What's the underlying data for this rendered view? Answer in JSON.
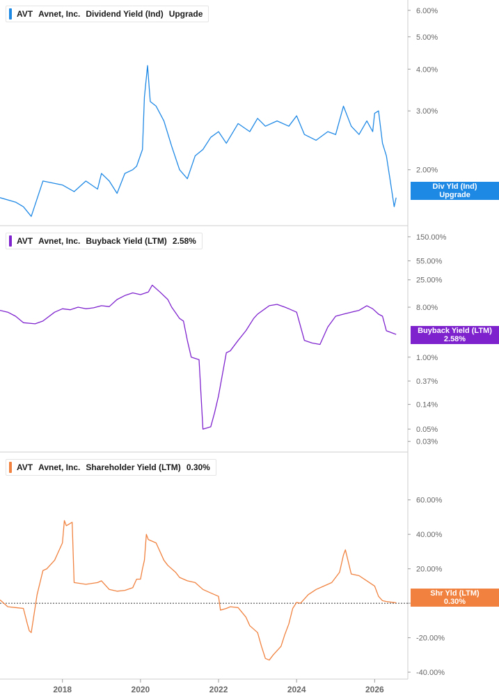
{
  "colors": {
    "dividend": "#1e88e5",
    "buyback": "#7e22ce",
    "shareholder": "#f0813e",
    "axis_text": "#666666",
    "divider": "#cccccc"
  },
  "panels": [
    {
      "id": "dividend",
      "legend": {
        "ticker": "AVT",
        "company": "Avnet, Inc.",
        "metric": "Dividend Yield (Ind)",
        "value": "Upgrade"
      },
      "tag": {
        "line1": "Div Yld (Ind)",
        "line2": "Upgrade"
      }
    },
    {
      "id": "buyback",
      "legend": {
        "ticker": "AVT",
        "company": "Avnet, Inc.",
        "metric": "Buyback Yield (LTM)",
        "value": "2.58%"
      },
      "tag": {
        "line1": "Buyback Yield (LTM)",
        "line2": "2.58%"
      }
    },
    {
      "id": "shareholder",
      "legend": {
        "ticker": "AVT",
        "company": "Avnet, Inc.",
        "metric": "Shareholder Yield (LTM)",
        "value": "0.30%"
      },
      "tag": {
        "line1": "Shr Yld (LTM)",
        "line2": "0.30%"
      }
    }
  ],
  "chart_data": [
    {
      "type": "line",
      "series": [
        {
          "name": "Dividend Yield (Ind)",
          "x": [
            2016.4,
            2016.8,
            2017.0,
            2017.2,
            2017.5,
            2018.0,
            2018.3,
            2018.6,
            2018.9,
            2019.0,
            2019.2,
            2019.4,
            2019.6,
            2019.8,
            2019.9,
            2020.05,
            2020.1,
            2020.18,
            2020.25,
            2020.4,
            2020.6,
            2020.8,
            2021.0,
            2021.2,
            2021.4,
            2021.6,
            2021.8,
            2022.0,
            2022.2,
            2022.5,
            2022.8,
            2023.0,
            2023.2,
            2023.5,
            2023.8,
            2024.0,
            2024.2,
            2024.5,
            2024.8,
            2025.0,
            2025.2,
            2025.4,
            2025.6,
            2025.8,
            2025.95,
            2026.0,
            2026.1,
            2026.2,
            2026.3,
            2026.4,
            2026.5,
            2026.55
          ],
          "values": [
            1.65,
            1.6,
            1.55,
            1.45,
            1.85,
            1.8,
            1.72,
            1.85,
            1.75,
            1.95,
            1.85,
            1.7,
            1.95,
            2.0,
            2.05,
            2.3,
            3.3,
            4.1,
            3.2,
            3.1,
            2.8,
            2.35,
            2.0,
            1.88,
            2.2,
            2.3,
            2.5,
            2.6,
            2.4,
            2.75,
            2.6,
            2.85,
            2.7,
            2.8,
            2.7,
            2.9,
            2.55,
            2.45,
            2.6,
            2.55,
            3.1,
            2.7,
            2.55,
            2.8,
            2.6,
            2.95,
            3.0,
            2.4,
            2.2,
            1.85,
            1.55,
            1.65
          ]
        }
      ],
      "ylim": [
        1.4,
        6.2
      ],
      "y_scale": "log",
      "y_ticks": [
        2.0,
        3.0,
        4.0,
        5.0,
        6.0
      ],
      "y_tick_labels": [
        "2.00%",
        "3.00%",
        "4.00%",
        "5.00%",
        "6.00%"
      ],
      "xlim": [
        2016.4,
        2026.85
      ],
      "x_ticks": [
        2018,
        2020,
        2022,
        2024,
        2026
      ],
      "x_tick_labels": [
        "2018",
        "2020",
        "2022",
        "2024",
        "2026"
      ]
    },
    {
      "type": "line",
      "series": [
        {
          "name": "Buyback Yield (LTM)",
          "x": [
            2016.4,
            2016.6,
            2016.8,
            2017.0,
            2017.3,
            2017.5,
            2017.8,
            2018.0,
            2018.2,
            2018.4,
            2018.6,
            2018.8,
            2019.0,
            2019.2,
            2019.4,
            2019.6,
            2019.8,
            2020.0,
            2020.2,
            2020.3,
            2020.5,
            2020.7,
            2020.8,
            2021.0,
            2021.1,
            2021.2,
            2021.3,
            2021.5,
            2021.6,
            2021.8,
            2021.9,
            2022.0,
            2022.2,
            2022.3,
            2022.5,
            2022.7,
            2022.9,
            2023.0,
            2023.3,
            2023.5,
            2023.7,
            2023.8,
            2024.0,
            2024.2,
            2024.4,
            2024.6,
            2024.8,
            2025.0,
            2025.2,
            2025.4,
            2025.6,
            2025.8,
            2025.95,
            2026.1,
            2026.2,
            2026.3,
            2026.55
          ],
          "values": [
            7.0,
            6.5,
            5.5,
            4.2,
            4.0,
            4.5,
            6.5,
            7.5,
            7.2,
            8.0,
            7.5,
            7.8,
            8.5,
            8.2,
            11.0,
            13.0,
            14.5,
            13.5,
            15.0,
            20.0,
            15.0,
            11.0,
            8.0,
            5.0,
            4.5,
            2.0,
            1.0,
            0.9,
            0.05,
            0.055,
            0.1,
            0.2,
            1.2,
            1.3,
            2.0,
            3.0,
            5.0,
            6.0,
            8.5,
            9.0,
            8.0,
            7.5,
            6.5,
            2.0,
            1.8,
            1.7,
            3.5,
            5.5,
            6.0,
            6.5,
            7.0,
            8.5,
            7.5,
            6.0,
            5.5,
            3.0,
            2.58
          ]
        }
      ],
      "ylim": [
        0.025,
        200
      ],
      "y_scale": "log",
      "y_ticks": [
        0.03,
        0.05,
        0.14,
        0.37,
        1.0,
        8.0,
        25.0,
        55.0,
        150.0
      ],
      "y_tick_labels": [
        "0.03%",
        "0.05%",
        "0.14%",
        "0.37%",
        "1.00%",
        "8.00%",
        "25.00%",
        "55.00%",
        "150.00%"
      ],
      "xlim": [
        2016.4,
        2026.85
      ],
      "x_ticks": [
        2018,
        2020,
        2022,
        2024,
        2026
      ],
      "x_tick_labels": [
        "2018",
        "2020",
        "2022",
        "2024",
        "2026"
      ]
    },
    {
      "type": "line",
      "series": [
        {
          "name": "Shareholder Yield (LTM)",
          "x": [
            2016.4,
            2016.6,
            2016.8,
            2017.0,
            2017.1,
            2017.15,
            2017.2,
            2017.35,
            2017.5,
            2017.6,
            2017.8,
            2017.9,
            2018.0,
            2018.05,
            2018.1,
            2018.25,
            2018.3,
            2018.6,
            2018.9,
            2019.0,
            2019.2,
            2019.4,
            2019.6,
            2019.8,
            2019.9,
            2020.0,
            2020.05,
            2020.1,
            2020.15,
            2020.2,
            2020.4,
            2020.6,
            2020.7,
            2020.9,
            2021.0,
            2021.2,
            2021.4,
            2021.6,
            2021.8,
            2022.0,
            2022.05,
            2022.2,
            2022.3,
            2022.5,
            2022.7,
            2022.8,
            2023.0,
            2023.1,
            2023.2,
            2023.3,
            2023.4,
            2023.6,
            2023.7,
            2023.8,
            2023.9,
            2024.0,
            2024.1,
            2024.3,
            2024.5,
            2024.7,
            2024.9,
            2025.0,
            2025.1,
            2025.2,
            2025.25,
            2025.4,
            2025.6,
            2025.8,
            2026.0,
            2026.1,
            2026.2,
            2026.3,
            2026.55
          ],
          "values": [
            2.0,
            -2.0,
            -2.5,
            -3.0,
            -12.0,
            -16.0,
            -17.0,
            5.0,
            19.0,
            20.0,
            25.0,
            30.0,
            35.0,
            48.0,
            45.0,
            47.0,
            12.0,
            11.0,
            12.0,
            13.0,
            8.0,
            7.0,
            7.5,
            9.0,
            14.0,
            14.0,
            20.0,
            25.0,
            40.0,
            37.0,
            35.0,
            25.0,
            22.0,
            18.0,
            15.0,
            13.0,
            12.0,
            8.0,
            6.0,
            4.0,
            -4.0,
            -3.0,
            -2.0,
            -2.5,
            -8.0,
            -13.0,
            -17.0,
            -25.0,
            -32.0,
            -33.0,
            -30.0,
            -25.0,
            -18.0,
            -12.0,
            -3.0,
            0.5,
            0.0,
            5.0,
            8.0,
            10.0,
            12.0,
            15.0,
            18.0,
            28.0,
            31.0,
            17.0,
            16.0,
            13.0,
            10.0,
            4.0,
            1.5,
            1.0,
            0.3
          ]
        }
      ],
      "ylim": [
        -42,
        72
      ],
      "y_scale": "linear",
      "y_ticks": [
        -40,
        -20,
        0,
        20,
        40,
        60
      ],
      "y_tick_labels": [
        "-40.00%",
        "-20.00%",
        "0.00%",
        "20.00%",
        "40.00%",
        "60.00%"
      ],
      "zero_line": true,
      "xlim": [
        2016.4,
        2026.85
      ],
      "x_ticks": [
        2018,
        2020,
        2022,
        2024,
        2026
      ],
      "x_tick_labels": [
        "2018",
        "2020",
        "2022",
        "2024",
        "2026"
      ]
    }
  ]
}
